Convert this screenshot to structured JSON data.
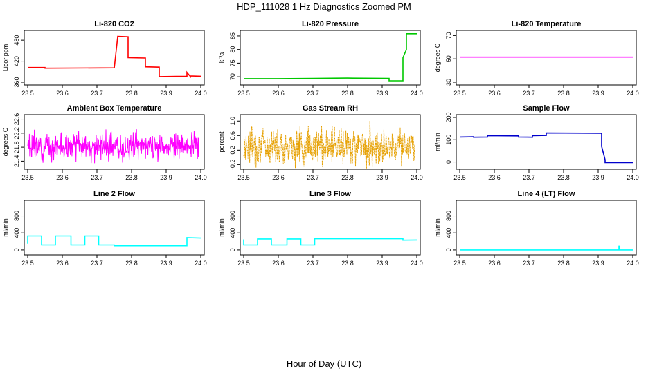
{
  "figure": {
    "title": "HDP_111028  1 Hz Diagnostics Zoomed PM",
    "xlabel": "Hour of Day (UTC)"
  },
  "chart_data": [
    {
      "type": "line",
      "title": "Li-820 CO2",
      "ylabel": "Licor ppm",
      "color": "#ff0000",
      "xlim": [
        23.5,
        24.0
      ],
      "ylim": [
        360,
        500
      ],
      "x_ticks": [
        "23.5",
        "23.6",
        "23.7",
        "23.8",
        "23.9",
        "24.0"
      ],
      "y_ticks": [
        "360",
        "420",
        "480"
      ],
      "x": [
        23.5,
        23.55,
        23.55,
        23.75,
        23.75,
        23.76,
        23.76,
        23.79,
        23.79,
        23.84,
        23.84,
        23.88,
        23.88,
        23.96,
        23.96,
        23.97,
        23.97,
        24.0
      ],
      "y": [
        402,
        402,
        400,
        401,
        400,
        490,
        491,
        490,
        430,
        429,
        404,
        403,
        376,
        377,
        388,
        376,
        378,
        377
      ]
    },
    {
      "type": "line",
      "title": "Li-820 Pressure",
      "ylabel": "kPa",
      "color": "#00c800",
      "xlim": [
        23.5,
        24.0
      ],
      "ylim": [
        68,
        86
      ],
      "x_ticks": [
        "23.5",
        "23.6",
        "23.7",
        "23.8",
        "23.9",
        "24.0"
      ],
      "y_ticks": [
        "70",
        "75",
        "80",
        "85"
      ],
      "x": [
        23.5,
        23.6,
        23.7,
        23.8,
        23.92,
        23.92,
        23.96,
        23.96,
        23.97,
        23.97,
        24.0
      ],
      "y": [
        69.3,
        69.3,
        69.4,
        69.5,
        69.4,
        68.5,
        68.5,
        77,
        80,
        85.8,
        85.8
      ]
    },
    {
      "type": "line",
      "title": "Li-820 Temperature",
      "ylabel": "degrees C",
      "color": "#ff00ff",
      "xlim": [
        23.5,
        24.0
      ],
      "ylim": [
        30,
        72
      ],
      "x_ticks": [
        "23.5",
        "23.6",
        "23.7",
        "23.8",
        "23.9",
        "24.0"
      ],
      "y_ticks": [
        "30",
        "50",
        "70"
      ],
      "x": [
        23.5,
        24.0
      ],
      "y": [
        51.5,
        51.5
      ]
    },
    {
      "type": "line",
      "title": "Ambient Box Temperature",
      "ylabel": "degrees C",
      "color": "#ff00ff",
      "xlim": [
        23.5,
        24.0
      ],
      "ylim": [
        21.25,
        22.65
      ],
      "x_ticks": [
        "23.5",
        "23.6",
        "23.7",
        "23.8",
        "23.9",
        "24.0"
      ],
      "y_ticks": [
        "21.4",
        "21.8",
        "22.2",
        "22.6"
      ],
      "noise": {
        "center": 21.82,
        "amplitude": 0.4,
        "seed": 3
      },
      "x": [
        23.5,
        24.0
      ],
      "y": [
        21.82,
        21.82
      ]
    },
    {
      "type": "line",
      "title": "Gas Stream RH",
      "ylabel": "percent",
      "color": "#e6a000",
      "xlim": [
        23.5,
        24.0
      ],
      "ylim": [
        -0.25,
        1.1
      ],
      "x_ticks": [
        "23.5",
        "23.6",
        "23.7",
        "23.8",
        "23.9",
        "24.0"
      ],
      "y_ticks": [
        "-0.2",
        "0.2",
        "0.6",
        "1.0"
      ],
      "noise": {
        "center": 0.32,
        "amplitude": 0.55,
        "seed": 7
      },
      "x": [
        23.5,
        24.0
      ],
      "y": [
        0.32,
        0.32
      ]
    },
    {
      "type": "line",
      "title": "Sample Flow",
      "ylabel": "ml/min",
      "color": "#0000cc",
      "xlim": [
        23.5,
        24.0
      ],
      "ylim": [
        -20,
        200
      ],
      "x_ticks": [
        "23.5",
        "23.6",
        "23.7",
        "23.8",
        "23.9",
        "24.0"
      ],
      "y_ticks": [
        "0",
        "100",
        "200"
      ],
      "x": [
        23.5,
        23.54,
        23.54,
        23.58,
        23.58,
        23.67,
        23.67,
        23.71,
        23.71,
        23.75,
        23.75,
        23.91,
        23.91,
        23.92,
        23.92,
        24.0
      ],
      "y": [
        112,
        113,
        111,
        112,
        118,
        117,
        112,
        111,
        118,
        119,
        130,
        129,
        70,
        10,
        -3,
        -3
      ]
    },
    {
      "type": "line",
      "title": "Line 2 Flow",
      "ylabel": "ml/min",
      "color": "#00ffff",
      "xlim": [
        23.5,
        24.0
      ],
      "ylim": [
        -50,
        1100
      ],
      "x_ticks": [
        "23.5",
        "23.6",
        "23.7",
        "23.8",
        "23.9",
        "24.0"
      ],
      "y_ticks": [
        "0",
        "400",
        "800"
      ],
      "x": [
        23.5,
        23.5,
        23.54,
        23.54,
        23.58,
        23.58,
        23.625,
        23.625,
        23.665,
        23.665,
        23.705,
        23.705,
        23.75,
        23.75,
        23.96,
        23.96,
        24.0
      ],
      "y": [
        150,
        330,
        330,
        120,
        120,
        330,
        330,
        120,
        120,
        330,
        330,
        120,
        120,
        100,
        100,
        290,
        280
      ]
    },
    {
      "type": "line",
      "title": "Line 3 Flow",
      "ylabel": "ml/min",
      "color": "#00ffff",
      "xlim": [
        23.5,
        24.0
      ],
      "ylim": [
        -50,
        1100
      ],
      "x_ticks": [
        "23.5",
        "23.6",
        "23.7",
        "23.8",
        "23.9",
        "24.0"
      ],
      "y_ticks": [
        "0",
        "400",
        "800"
      ],
      "x": [
        23.5,
        23.5,
        23.54,
        23.54,
        23.58,
        23.58,
        23.625,
        23.625,
        23.665,
        23.665,
        23.705,
        23.705,
        23.96,
        23.96,
        24.0
      ],
      "y": [
        250,
        120,
        120,
        260,
        260,
        120,
        120,
        260,
        260,
        120,
        120,
        265,
        265,
        230,
        235
      ]
    },
    {
      "type": "line",
      "title": "Line 4 (LT) Flow",
      "ylabel": "ml/min",
      "color": "#00ffff",
      "xlim": [
        23.5,
        24.0
      ],
      "ylim": [
        -50,
        1100
      ],
      "x_ticks": [
        "23.5",
        "23.6",
        "23.7",
        "23.8",
        "23.9",
        "24.0"
      ],
      "y_ticks": [
        "0",
        "400",
        "800"
      ],
      "x": [
        23.5,
        23.96,
        23.96,
        23.962,
        23.962,
        24.0
      ],
      "y": [
        0,
        0,
        90,
        90,
        0,
        0
      ]
    }
  ]
}
